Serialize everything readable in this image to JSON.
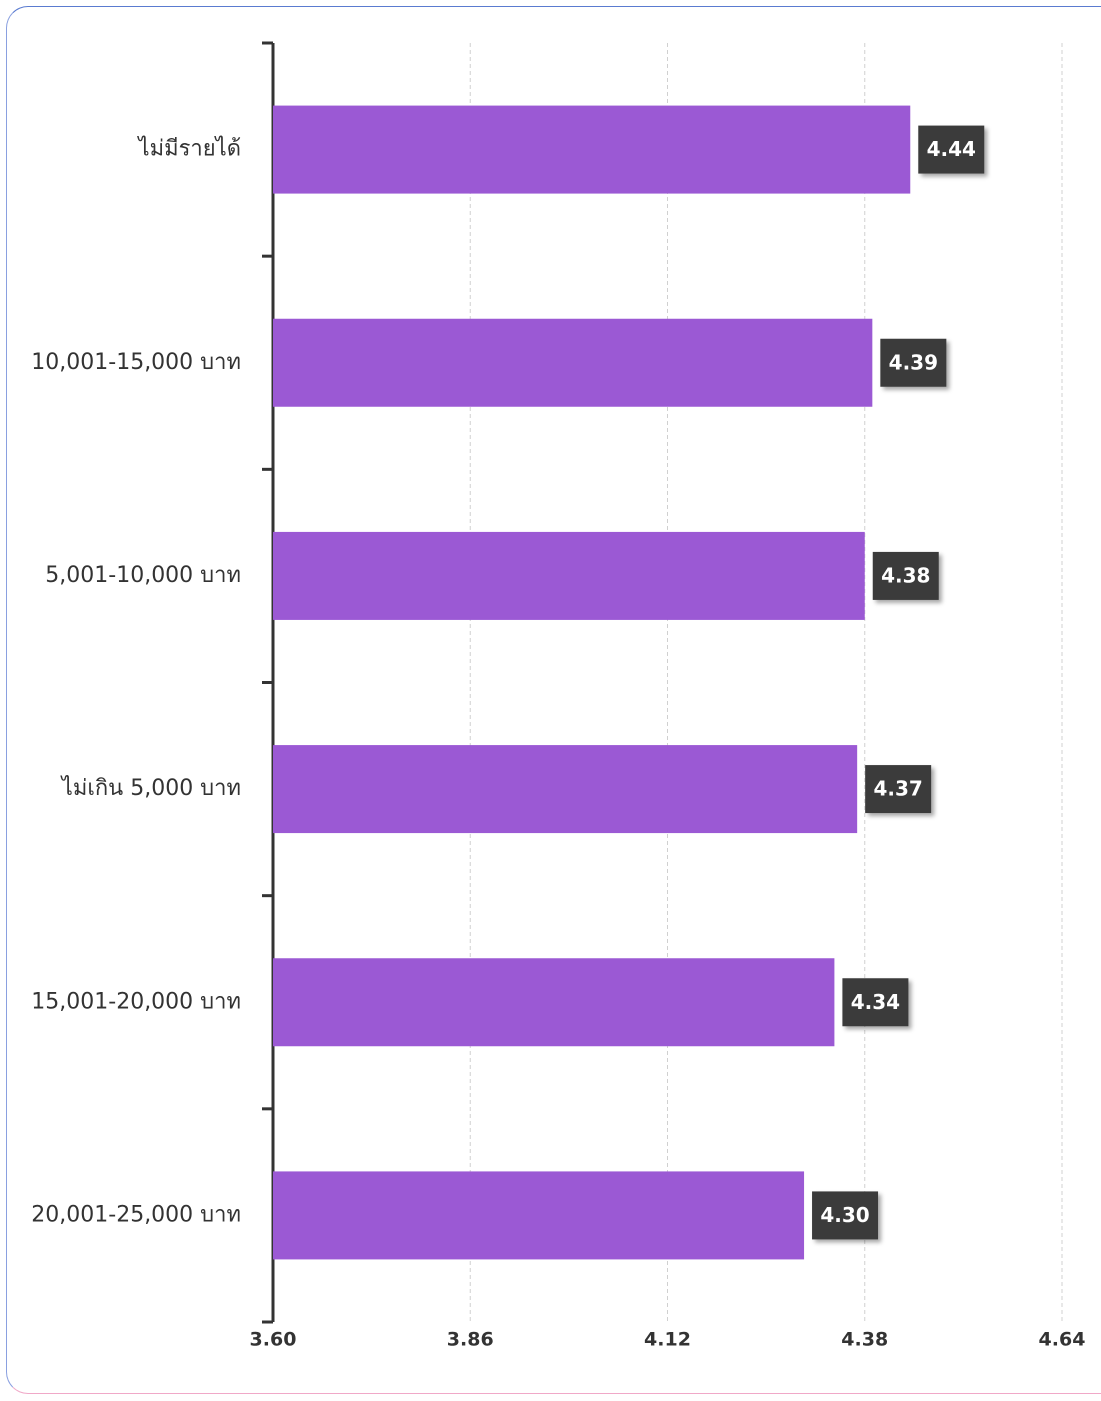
{
  "chart_data": {
    "type": "barh",
    "categories": [
      "ไม่มีรายได้",
      "10,001-15,000 บาท",
      "5,001-10,000 บาท",
      "ไม่เกิน 5,000 บาท",
      "15,001-20,000 บาท",
      "20,001-25,000 บาท"
    ],
    "values": [
      4.44,
      4.39,
      4.38,
      4.37,
      4.34,
      4.3
    ],
    "value_labels": [
      "4.44",
      "4.39",
      "4.38",
      "4.37",
      "4.34",
      "4.30"
    ],
    "color": "#9b59d4",
    "xlim": [
      3.6,
      4.64
    ],
    "xticks": [
      {
        "value": 3.6,
        "label": "3.60"
      },
      3.86,
      4.12,
      4.38,
      4.64
    ],
    "grid": true
  }
}
